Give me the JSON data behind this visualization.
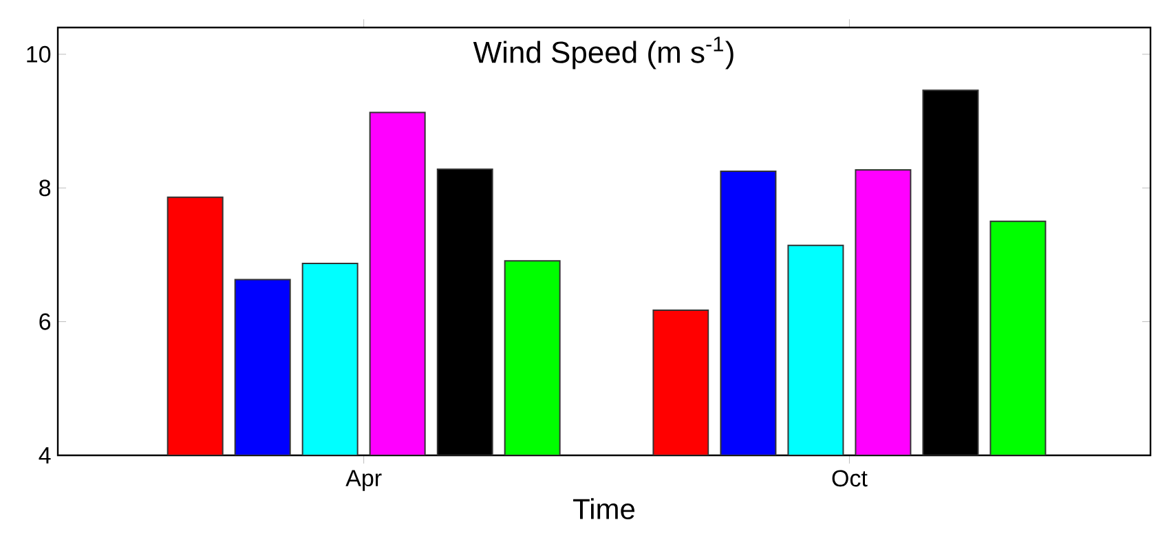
{
  "chart_data": {
    "type": "bar",
    "title": "Wind Speed (m s$^{-1}$)",
    "xlabel": "Time",
    "categories": [
      "Apr",
      "Oct"
    ],
    "series": [
      {
        "color": "#ff0000",
        "values": [
          7.86,
          6.17
        ]
      },
      {
        "color": "#0000ff",
        "values": [
          6.63,
          8.25
        ]
      },
      {
        "color": "#00ffff",
        "values": [
          6.87,
          7.14
        ]
      },
      {
        "color": "#ff00ff",
        "values": [
          9.13,
          8.27
        ]
      },
      {
        "color": "#000000",
        "values": [
          8.28,
          9.46
        ]
      },
      {
        "color": "#00ff00",
        "values": [
          6.91,
          7.5
        ]
      }
    ],
    "ylim": [
      4,
      10.4
    ],
    "yticks": [
      4,
      6,
      8,
      10
    ]
  }
}
